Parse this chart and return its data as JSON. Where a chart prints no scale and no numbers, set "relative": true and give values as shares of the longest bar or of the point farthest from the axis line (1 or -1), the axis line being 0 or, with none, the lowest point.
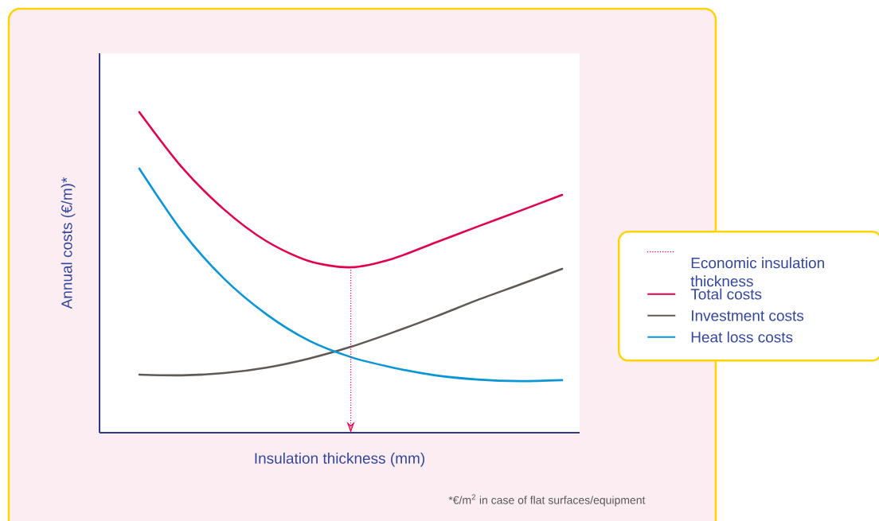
{
  "chart_data": {
    "type": "line",
    "relative": true,
    "xlabel": "Insulation thickness (mm)",
    "ylabel": "Annual costs (€/m)*",
    "categories": [
      null,
      null,
      null,
      null,
      null,
      null,
      null,
      null,
      null,
      null,
      null
    ],
    "series": [
      {
        "name": "Total costs",
        "color": "#e0004d",
        "values": [
          1.0,
          0.829,
          0.697,
          0.598,
          0.536,
          0.516,
          0.543,
          0.593,
          0.643,
          0.692,
          0.742
        ]
      },
      {
        "name": "Investment costs",
        "color": "#5f5a55",
        "values": [
          0.181,
          0.179,
          0.186,
          0.203,
          0.231,
          0.268,
          0.313,
          0.362,
          0.414,
          0.462,
          0.511
        ]
      },
      {
        "name": "Heat loss costs",
        "color": "#0a96d4",
        "values": [
          0.824,
          0.63,
          0.481,
          0.37,
          0.288,
          0.236,
          0.203,
          0.179,
          0.166,
          0.161,
          0.164
        ]
      }
    ],
    "legend": "right",
    "annotations": [
      "Economic insulation thickness",
      "*€/m$^{2}$ in case of flat surfaces/equipment"
    ]
  }
}
